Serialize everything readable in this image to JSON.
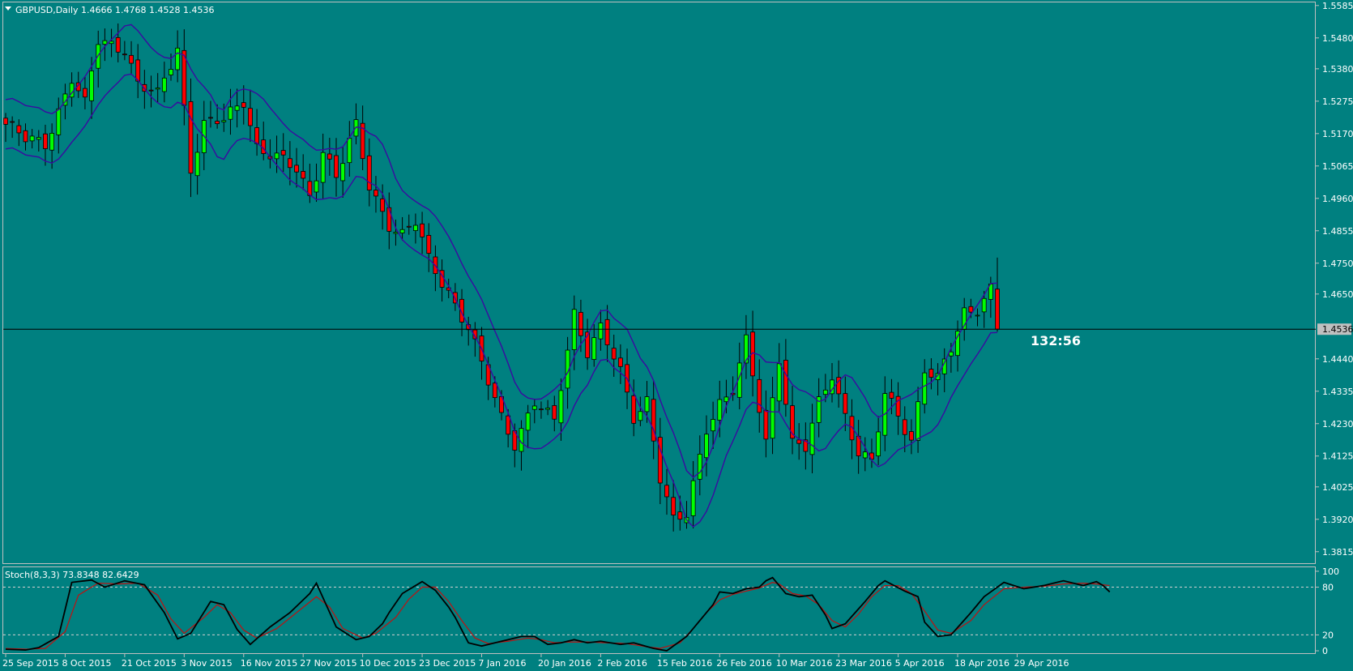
{
  "header": {
    "menu_icon": "triangle-down-icon",
    "symbol_info": "GBPUSD,Daily  1.4666 1.4768 1.4528 1.4536"
  },
  "timer": "132:56",
  "colors": {
    "background": "#008080",
    "bull_candle": "#00ff00",
    "bear_candle": "#ff0000",
    "wick": "#000000",
    "envelope": "#3a0aa0",
    "stoch_main": "#000000",
    "stoch_signal": "#c01010",
    "price_line": "#000000",
    "frame": "#c0c0c0"
  },
  "chart_data": [
    {
      "type": "candlestick",
      "title": "GBPUSD,Daily",
      "ohlc_label": "1.4666 1.4768 1.4528 1.4536",
      "ylim": [
        1.3775,
        1.5595
      ],
      "y_ticks": [
        "1.5585",
        "1.5480",
        "1.5380",
        "1.5275",
        "1.5170",
        "1.5065",
        "1.4960",
        "1.4855",
        "1.4750",
        "1.4650",
        "1.4440",
        "1.4335",
        "1.4230",
        "1.4125",
        "1.4025",
        "1.3920",
        "1.3815"
      ],
      "current_price": "1.4536",
      "x_labels": [
        "25 Sep 2015",
        "8 Oct 2015",
        "21 Oct 2015",
        "3 Nov 2015",
        "16 Nov 2015",
        "27 Nov 2015",
        "10 Dec 2015",
        "23 Dec 2015",
        "7 Jan 2016",
        "20 Jan 2016",
        "2 Feb 2016",
        "15 Feb 2016",
        "26 Feb 2016",
        "10 Mar 2016",
        "23 Mar 2016",
        "5 Apr 2016",
        "18 Apr 2016",
        "29 Apr 2016"
      ],
      "x_label_index": [
        0,
        9,
        18,
        27,
        36,
        45,
        54,
        63,
        72,
        81,
        90,
        99,
        108,
        117,
        126,
        135,
        144,
        153
      ],
      "close_anchors": [
        [
          0,
          1.52
        ],
        [
          3,
          1.515
        ],
        [
          6,
          1.514
        ],
        [
          10,
          1.535
        ],
        [
          12,
          1.526
        ],
        [
          14,
          1.547
        ],
        [
          18,
          1.545
        ],
        [
          20,
          1.533
        ],
        [
          23,
          1.529
        ],
        [
          26,
          1.545
        ],
        [
          28,
          1.506
        ],
        [
          30,
          1.52
        ],
        [
          33,
          1.521
        ],
        [
          36,
          1.528
        ],
        [
          38,
          1.513
        ],
        [
          41,
          1.509
        ],
        [
          44,
          1.505
        ],
        [
          46,
          1.497
        ],
        [
          48,
          1.512
        ],
        [
          50,
          1.503
        ],
        [
          53,
          1.519
        ],
        [
          55,
          1.5
        ],
        [
          58,
          1.488
        ],
        [
          60,
          1.484
        ],
        [
          62,
          1.488
        ],
        [
          64,
          1.476
        ],
        [
          67,
          1.466
        ],
        [
          70,
          1.454
        ],
        [
          72,
          1.442
        ],
        [
          75,
          1.425
        ],
        [
          77,
          1.417
        ],
        [
          80,
          1.43
        ],
        [
          83,
          1.423
        ],
        [
          86,
          1.459
        ],
        [
          88,
          1.447
        ],
        [
          90,
          1.454
        ],
        [
          93,
          1.439
        ],
        [
          95,
          1.425
        ],
        [
          97,
          1.431
        ],
        [
          99,
          1.406
        ],
        [
          101,
          1.391
        ],
        [
          103,
          1.393
        ],
        [
          106,
          1.422
        ],
        [
          108,
          1.43
        ],
        [
          110,
          1.434
        ],
        [
          112,
          1.449
        ],
        [
          115,
          1.417
        ],
        [
          117,
          1.445
        ],
        [
          119,
          1.417
        ],
        [
          121,
          1.415
        ],
        [
          123,
          1.429
        ],
        [
          125,
          1.439
        ],
        [
          127,
          1.426
        ],
        [
          129,
          1.414
        ],
        [
          131,
          1.41
        ],
        [
          133,
          1.432
        ],
        [
          135,
          1.426
        ],
        [
          137,
          1.418
        ],
        [
          139,
          1.441
        ],
        [
          141,
          1.437
        ],
        [
          143,
          1.447
        ],
        [
          145,
          1.459
        ],
        [
          147,
          1.461
        ],
        [
          149,
          1.467
        ],
        [
          150,
          1.4536
        ]
      ],
      "envelope_offset": 0.008
    },
    {
      "type": "line",
      "title": "Stoch(8,3,3) 73.8348 82.6429",
      "ylim": [
        -3,
        105
      ],
      "y_ticks": [
        "100",
        "80",
        "20",
        "0"
      ],
      "levels": [
        80,
        20
      ],
      "series": [
        {
          "name": "Main",
          "anchors": [
            [
              0,
              2
            ],
            [
              3,
              1
            ],
            [
              5,
              4
            ],
            [
              8,
              18
            ],
            [
              10,
              86
            ],
            [
              13,
              89
            ],
            [
              15,
              80
            ],
            [
              18,
              88
            ],
            [
              21,
              83
            ],
            [
              24,
              48
            ],
            [
              26,
              15
            ],
            [
              28,
              22
            ],
            [
              31,
              62
            ],
            [
              33,
              58
            ],
            [
              35,
              27
            ],
            [
              37,
              8
            ],
            [
              40,
              30
            ],
            [
              43,
              48
            ],
            [
              46,
              72
            ],
            [
              47,
              85
            ],
            [
              50,
              30
            ],
            [
              53,
              14
            ],
            [
              55,
              18
            ],
            [
              57,
              34
            ],
            [
              58,
              48
            ],
            [
              60,
              72
            ],
            [
              62,
              82
            ],
            [
              63,
              87
            ],
            [
              65,
              76
            ],
            [
              67,
              55
            ],
            [
              68,
              42
            ],
            [
              70,
              10
            ],
            [
              72,
              6
            ],
            [
              75,
              12
            ],
            [
              78,
              18
            ],
            [
              80,
              18
            ],
            [
              82,
              8
            ],
            [
              84,
              10
            ],
            [
              86,
              14
            ],
            [
              88,
              10
            ],
            [
              90,
              12
            ],
            [
              93,
              8
            ],
            [
              95,
              10
            ],
            [
              98,
              3
            ],
            [
              100,
              0
            ],
            [
              103,
              18
            ],
            [
              105,
              38
            ],
            [
              107,
              58
            ],
            [
              108,
              74
            ],
            [
              110,
              72
            ],
            [
              112,
              78
            ],
            [
              114,
              80
            ],
            [
              115,
              88
            ],
            [
              116,
              92
            ],
            [
              118,
              72
            ],
            [
              120,
              68
            ],
            [
              122,
              70
            ],
            [
              124,
              45
            ],
            [
              125,
              28
            ],
            [
              127,
              34
            ],
            [
              130,
              62
            ],
            [
              132,
              82
            ],
            [
              133,
              88
            ],
            [
              136,
              75
            ],
            [
              138,
              68
            ],
            [
              139,
              36
            ],
            [
              141,
              18
            ],
            [
              143,
              20
            ],
            [
              146,
              48
            ],
            [
              148,
              68
            ],
            [
              151,
              86
            ],
            [
              154,
              78
            ],
            [
              157,
              82
            ],
            [
              160,
              88
            ],
            [
              163,
              82
            ],
            [
              165,
              87
            ],
            [
              166,
              82
            ],
            [
              167,
              74
            ]
          ]
        },
        {
          "name": "Signal",
          "anchors": [
            [
              0,
              3
            ],
            [
              3,
              2
            ],
            [
              6,
              3
            ],
            [
              9,
              24
            ],
            [
              11,
              70
            ],
            [
              14,
              85
            ],
            [
              17,
              84
            ],
            [
              20,
              85
            ],
            [
              23,
              70
            ],
            [
              25,
              40
            ],
            [
              27,
              22
            ],
            [
              30,
              42
            ],
            [
              32,
              58
            ],
            [
              34,
              48
            ],
            [
              36,
              26
            ],
            [
              38,
              16
            ],
            [
              41,
              28
            ],
            [
              44,
              48
            ],
            [
              47,
              68
            ],
            [
              49,
              55
            ],
            [
              51,
              28
            ],
            [
              54,
              16
            ],
            [
              56,
              22
            ],
            [
              59,
              42
            ],
            [
              61,
              65
            ],
            [
              63,
              80
            ],
            [
              65,
              80
            ],
            [
              67,
              62
            ],
            [
              69,
              38
            ],
            [
              71,
              16
            ],
            [
              73,
              9
            ],
            [
              76,
              12
            ],
            [
              79,
              16
            ],
            [
              81,
              14
            ],
            [
              83,
              10
            ],
            [
              85,
              11
            ],
            [
              88,
              11
            ],
            [
              91,
              10
            ],
            [
              94,
              9
            ],
            [
              97,
              5
            ],
            [
              99,
              3
            ],
            [
              102,
              10
            ],
            [
              104,
              28
            ],
            [
              106,
              48
            ],
            [
              108,
              64
            ],
            [
              110,
              71
            ],
            [
              112,
              75
            ],
            [
              114,
              79
            ],
            [
              116,
              86
            ],
            [
              117,
              84
            ],
            [
              119,
              72
            ],
            [
              121,
              69
            ],
            [
              123,
              58
            ],
            [
              125,
              38
            ],
            [
              127,
              30
            ],
            [
              129,
              46
            ],
            [
              131,
              68
            ],
            [
              133,
              82
            ],
            [
              135,
              82
            ],
            [
              137,
              72
            ],
            [
              139,
              50
            ],
            [
              141,
              26
            ],
            [
              143,
              22
            ],
            [
              146,
              38
            ],
            [
              148,
              58
            ],
            [
              151,
              78
            ],
            [
              154,
              80
            ],
            [
              157,
              81
            ],
            [
              160,
              84
            ],
            [
              163,
              85
            ],
            [
              165,
              84
            ],
            [
              167,
              82
            ]
          ]
        }
      ]
    }
  ]
}
